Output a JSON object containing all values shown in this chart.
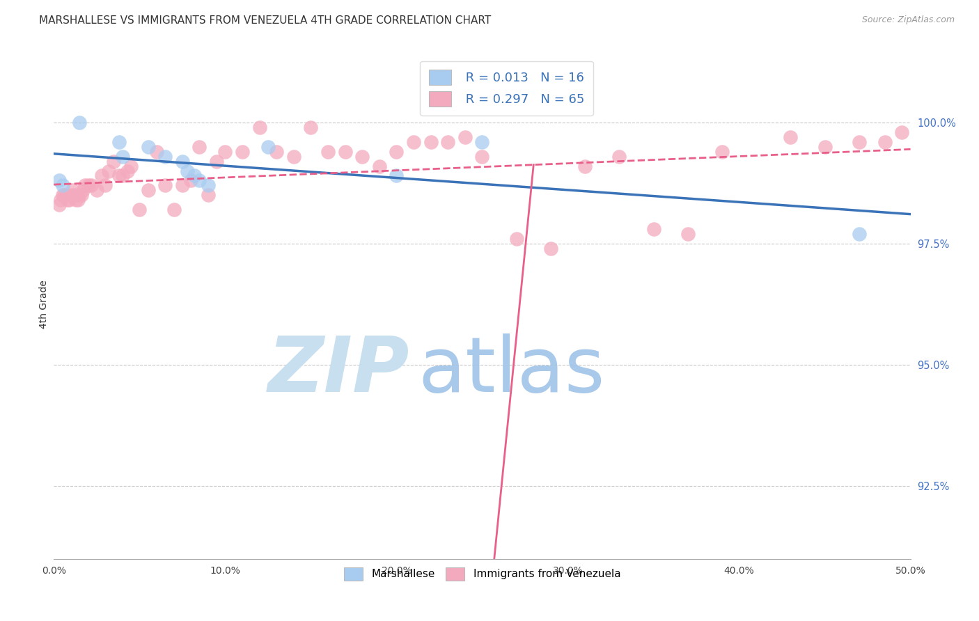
{
  "title": "MARSHALLESE VS IMMIGRANTS FROM VENEZUELA 4TH GRADE CORRELATION CHART",
  "source": "Source: ZipAtlas.com",
  "xlabel_ticks": [
    "0.0%",
    "10.0%",
    "20.0%",
    "30.0%",
    "40.0%",
    "50.0%"
  ],
  "xlabel_vals": [
    0.0,
    10.0,
    20.0,
    30.0,
    40.0,
    50.0
  ],
  "ylabel_ticks": [
    "92.5%",
    "95.0%",
    "97.5%",
    "100.0%"
  ],
  "ylabel_vals": [
    92.5,
    95.0,
    97.5,
    100.0
  ],
  "xlim": [
    0.0,
    50.0
  ],
  "ylim": [
    91.0,
    101.5
  ],
  "ylabel_label": "4th Grade",
  "legend_blue_r": "R = 0.013",
  "legend_blue_n": "N = 16",
  "legend_pink_r": "R = 0.297",
  "legend_pink_n": "N = 65",
  "blue_scatter_x": [
    0.5,
    1.5,
    3.8,
    4.0,
    5.5,
    6.5,
    7.5,
    7.8,
    8.2,
    8.5,
    9.0,
    12.5,
    20.0,
    25.0,
    47.0,
    0.3
  ],
  "blue_scatter_y": [
    98.7,
    100.0,
    99.6,
    99.3,
    99.5,
    99.3,
    99.2,
    99.0,
    98.9,
    98.8,
    98.7,
    99.5,
    98.9,
    99.6,
    97.7,
    98.8
  ],
  "pink_scatter_x": [
    0.3,
    0.4,
    0.5,
    0.6,
    0.7,
    0.8,
    0.9,
    1.0,
    1.1,
    1.2,
    1.3,
    1.4,
    1.5,
    1.6,
    1.7,
    1.8,
    2.0,
    2.2,
    2.5,
    2.8,
    3.0,
    3.2,
    3.5,
    3.8,
    4.0,
    4.3,
    4.5,
    5.0,
    5.5,
    6.0,
    6.5,
    7.0,
    7.5,
    8.0,
    8.5,
    9.0,
    9.5,
    10.0,
    11.0,
    12.0,
    13.0,
    14.0,
    15.0,
    16.0,
    17.0,
    18.0,
    19.0,
    20.0,
    21.0,
    22.0,
    23.0,
    24.0,
    25.0,
    27.0,
    29.0,
    31.0,
    33.0,
    35.0,
    37.0,
    39.0,
    43.0,
    45.0,
    47.0,
    48.5,
    49.5
  ],
  "pink_scatter_y": [
    98.3,
    98.4,
    98.5,
    98.5,
    98.5,
    98.4,
    98.4,
    98.5,
    98.6,
    98.5,
    98.4,
    98.4,
    98.5,
    98.5,
    98.6,
    98.7,
    98.7,
    98.7,
    98.6,
    98.9,
    98.7,
    99.0,
    99.2,
    98.9,
    98.9,
    99.0,
    99.1,
    98.2,
    98.6,
    99.4,
    98.7,
    98.2,
    98.7,
    98.8,
    99.5,
    98.5,
    99.2,
    99.4,
    99.4,
    99.9,
    99.4,
    99.3,
    99.9,
    99.4,
    99.4,
    99.3,
    99.1,
    99.4,
    99.6,
    99.6,
    99.6,
    99.7,
    99.3,
    97.6,
    97.4,
    99.1,
    99.3,
    97.8,
    97.7,
    99.4,
    99.7,
    99.5,
    99.6,
    99.6,
    99.8
  ],
  "blue_color": "#A8CCF0",
  "pink_color": "#F4AABE",
  "blue_line_color": "#3B73B8",
  "pink_line_color": "#E8608A",
  "grid_color": "#C8C8C8",
  "watermark_zip_color": "#C8DFF0",
  "watermark_atlas_color": "#A0C4E8",
  "right_axis_color": "#4472C4",
  "title_fontsize": 11,
  "label_fontsize": 10
}
